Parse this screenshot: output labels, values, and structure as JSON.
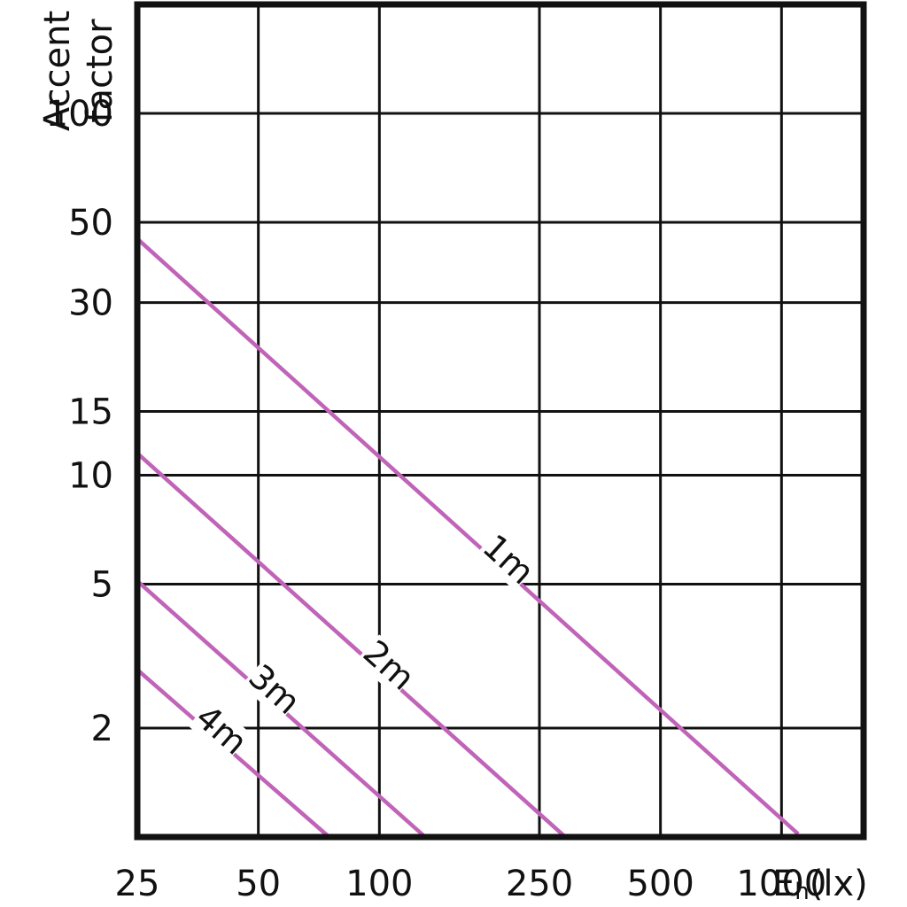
{
  "chart_data": {
    "type": "line",
    "title": "",
    "ylabel": [
      "Accent",
      "factor"
    ],
    "xlabel_main": "E",
    "xlabel_sub": "h",
    "xlabel_unit": "(lx)",
    "x_scale": "log",
    "y_scale": "log",
    "grid": true,
    "xlim": [
      25,
      1600
    ],
    "ylim": [
      1,
      200
    ],
    "x_ticks": [
      25,
      50,
      100,
      250,
      500,
      1000
    ],
    "x_tick_labels": [
      "25",
      "50",
      "100",
      "250",
      "500",
      "1000"
    ],
    "y_ticks": [
      2,
      5,
      10,
      15,
      30,
      50,
      100
    ],
    "y_tick_labels": [
      "2",
      "5",
      "10",
      "15",
      "30",
      "50",
      "100"
    ],
    "extra_gridlines_y": [
      200
    ],
    "line_color": "#c064b8",
    "series": [
      {
        "name": "1m",
        "x": [
          25,
          1100
        ],
        "y": [
          45,
          1.02
        ]
      },
      {
        "name": "2m",
        "x": [
          25,
          290
        ],
        "y": [
          11.5,
          1
        ]
      },
      {
        "name": "3m",
        "x": [
          25,
          130
        ],
        "y": [
          5.1,
          1
        ]
      },
      {
        "name": "4m",
        "x": [
          25,
          75
        ],
        "y": [
          2.9,
          1
        ]
      }
    ]
  }
}
